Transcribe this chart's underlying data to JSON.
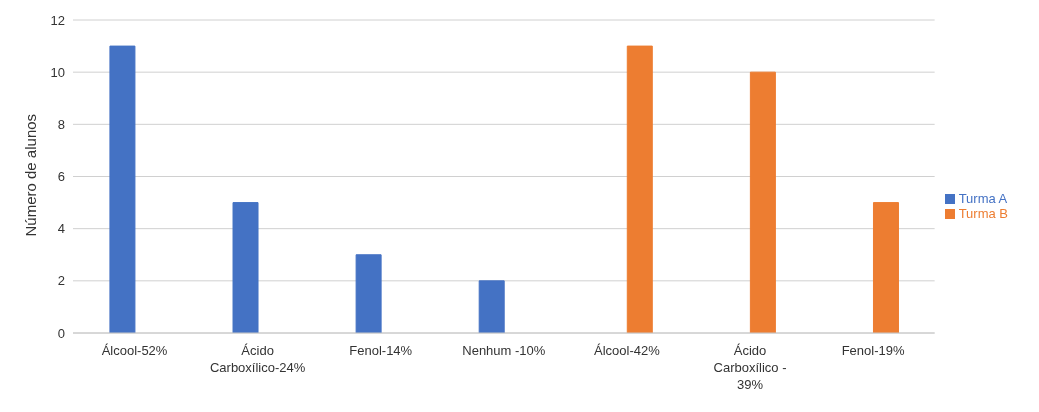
{
  "chart_data": {
    "type": "bar",
    "ylabel": "Número de alunos",
    "categories": [
      "Álcool-52%",
      "Ácido Carboxílico-24%",
      "Fenol-14%",
      "Nenhum -10%",
      "Álcool-42%",
      "Ácido Carboxílico - 39%",
      "Fenol-19%"
    ],
    "series": [
      {
        "name": "Turma A",
        "color": "#4472c4",
        "values": [
          11,
          5,
          3,
          2,
          null,
          null,
          null
        ]
      },
      {
        "name": "Turma B",
        "color": "#ed7d31",
        "values": [
          null,
          null,
          null,
          null,
          11,
          10,
          5
        ]
      }
    ],
    "ylim": [
      0,
      12
    ],
    "yticks": [
      0,
      2,
      4,
      6,
      8,
      10,
      12
    ],
    "grid": "y",
    "legend": "right"
  }
}
